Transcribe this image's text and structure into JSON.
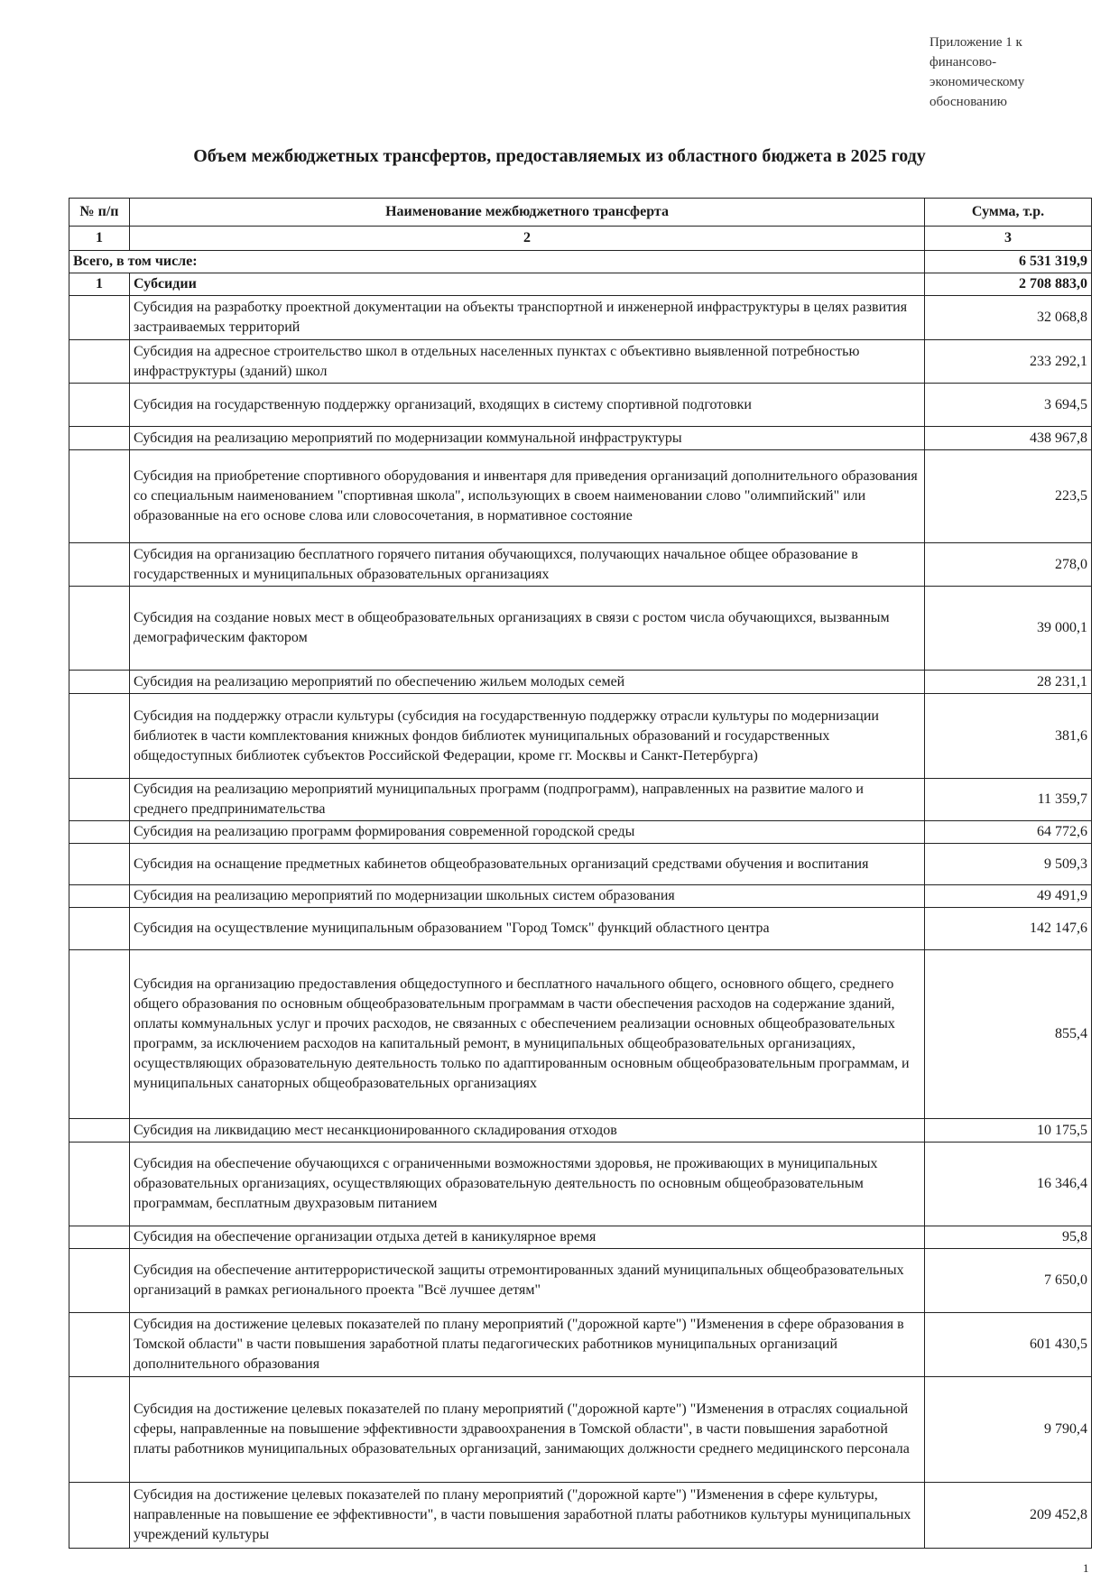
{
  "appendix": [
    "Приложение 1 к",
    "финансово-",
    "экономическому",
    "обоснованию"
  ],
  "title": "Объем межбюджетных трансфертов, предоставляемых из областного бюджета в 2025 году",
  "table": {
    "headers": [
      "№ п/п",
      "Наименование межбюджетного трансферта",
      "Сумма, т.р."
    ],
    "column_numbers": [
      "1",
      "2",
      "3"
    ],
    "total": {
      "label": "Всего, в том числе:",
      "amount": "6 531 319,9"
    },
    "section": {
      "num": "1",
      "label": "Субсидии",
      "amount": "2 708 883,0"
    },
    "rows": [
      {
        "name": "Субсидия на разработку проектной документации на объекты транспортной и инженерной инфраструктуры в целях развития застраиваемых территорий",
        "amount": "32 068,8"
      },
      {
        "name": "Субсидия на адресное строительство школ в отдельных населенных пунктах с объективно выявленной потребностью инфраструктуры (зданий) школ",
        "amount": "233 292,1"
      },
      {
        "name": "Субсидия на государственную поддержку организаций, входящих в систему спортивной подготовки",
        "amount": "3 694,5"
      },
      {
        "name": "Субсидия на реализацию мероприятий по модернизации коммунальной инфраструктуры",
        "amount": "438 967,8"
      },
      {
        "name": "Субсидия на приобретение спортивного оборудования и инвентаря для приведения организаций дополнительного образования со специальным наименованием \"спортивная школа\", использующих в своем наименовании слово \"олимпийский\" или образованные на его основе слова или словосочетания, в нормативное состояние",
        "amount": "223,5"
      },
      {
        "name": "Субсидия на организацию бесплатного горячего питания обучающихся, получающих начальное общее образование в государственных и муниципальных образовательных организациях",
        "amount": "278,0"
      },
      {
        "name": "Субсидия на создание новых мест в общеобразовательных организациях в связи с ростом числа обучающихся, вызванным демографическим фактором",
        "amount": "39 000,1"
      },
      {
        "name": "Субсидия на реализацию мероприятий по обеспечению жильем молодых семей",
        "amount": "28 231,1"
      },
      {
        "name": "Субсидия на поддержку отрасли культуры (субсидия на государственную поддержку отрасли культуры по модернизации библиотек в части комплектования книжных фондов библиотек муниципальных образований и государственных общедоступных библиотек субъектов Российской Федерации, кроме гг. Москвы и Санкт-Петербурга)",
        "amount": "381,6"
      },
      {
        "name": "Субсидия на реализацию мероприятий муниципальных программ (подпрограмм), направленных на развитие малого и среднего предпринимательства",
        "amount": "11 359,7"
      },
      {
        "name": "Субсидия на реализацию программ формирования современной городской среды",
        "amount": "64 772,6"
      },
      {
        "name": "Субсидия на оснащение предметных кабинетов общеобразовательных организаций средствами обучения и воспитания",
        "amount": "9 509,3"
      },
      {
        "name": "Субсидия на реализацию мероприятий по модернизации школьных систем образования",
        "amount": "49 491,9"
      },
      {
        "name": "Субсидия на осуществление муниципальным образованием \"Город Томск\" функций областного центра",
        "amount": "142 147,6"
      },
      {
        "name": "Субсидия на организацию предоставления общедоступного и бесплатного начального общего, основного общего, среднего общего образования по основным общеобразовательным программам в части обеспечения расходов на содержание зданий, оплаты коммунальных услуг и прочих расходов, не связанных с обеспечением реализации основных общеобразовательных программ, за исключением расходов на капитальный ремонт, в муниципальных общеобразовательных организациях, осуществляющих образовательную деятельность только по адаптированным основным общеобразовательным программам, и муниципальных санаторных общеобразовательных организациях",
        "amount": "855,4"
      },
      {
        "name": "Субсидия на ликвидацию мест несанкционированного складирования отходов",
        "amount": "10 175,5"
      },
      {
        "name": "Субсидия на обеспечение обучающихся с ограниченными возможностями здоровья, не проживающих в муниципальных образовательных организациях, осуществляющих образовательную деятельность по основным общеобразовательным программам, бесплатным двухразовым питанием",
        "amount": "16 346,4"
      },
      {
        "name": "Субсидия на обеспечение организации отдыха детей в каникулярное время",
        "amount": "95,8"
      },
      {
        "name": "Субсидия на обеспечение антитеррористической защиты отремонтированных зданий муниципальных общеобразовательных организаций в рамках регионального проекта \"Всё лучшее детям\"",
        "amount": "7 650,0"
      },
      {
        "name": "Субсидия на достижение целевых показателей по плану мероприятий (\"дорожной карте\") \"Изменения в сфере образования в Томской области\" в части повышения заработной платы педагогических работников муниципальных организаций дополнительного образования",
        "amount": "601 430,5"
      },
      {
        "name": "Субсидия на достижение целевых показателей по плану мероприятий (\"дорожной карте\") \"Изменения в отраслях социальной сферы, направленные на повышение эффективности здравоохранения в Томской области\", в части повышения заработной платы работников муниципальных образовательных организаций, занимающих должности среднего медицинского персонала",
        "amount": "9 790,4"
      },
      {
        "name": "Субсидия на достижение целевых показателей по плану мероприятий (\"дорожной карте\") \"Изменения в сфере культуры, направленные на повышение ее эффективности\", в части повышения заработной платы работников культуры муниципальных учреждений культуры",
        "amount": "209 452,8"
      }
    ]
  },
  "page_number": "1"
}
